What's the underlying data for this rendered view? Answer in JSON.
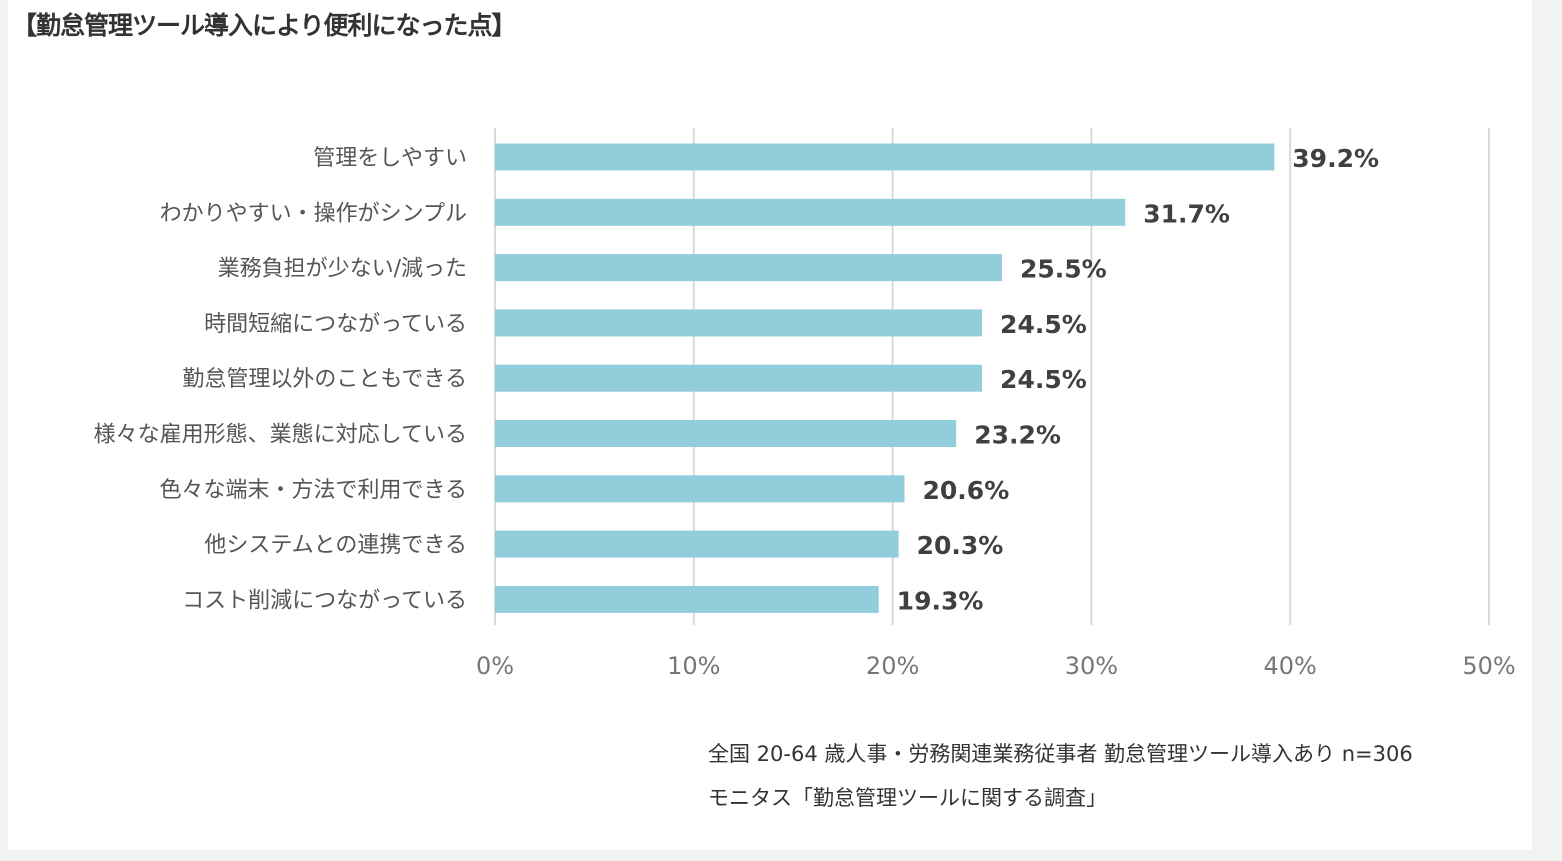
{
  "chart_data": {
    "type": "bar",
    "orientation": "horizontal",
    "title": "【勤怠管理ツール導入により便利になった点】",
    "categories": [
      "管理をしやすい",
      "わかりやすい・操作がシンプル",
      "業務負担が少ない/減った",
      "時間短縮につながっている",
      "勤怠管理以外のこともできる",
      "様々な雇用形態、業態に対応している",
      "色々な端末・方法で利用できる",
      "他システムとの連携できる",
      "コスト削減につながっている"
    ],
    "values": [
      39.2,
      31.7,
      25.5,
      24.5,
      24.5,
      23.2,
      20.6,
      20.3,
      19.3
    ],
    "value_labels": [
      "39.2%",
      "31.7%",
      "25.5%",
      "24.5%",
      "24.5%",
      "23.2%",
      "20.6%",
      "20.3%",
      "19.3%"
    ],
    "xlim": [
      0,
      50
    ],
    "xticks": [
      0,
      10,
      20,
      30,
      40,
      50
    ],
    "xtick_labels": [
      "0%",
      "10%",
      "20%",
      "30%",
      "40%",
      "50%"
    ],
    "grid": true,
    "bar_color": "#92cddc",
    "notes": [
      "全国 20-64 歳人事・労務関連業務従事者 勤怠管理ツール導入あり n=306",
      "モニタス「勤怠管理ツールに関する調査」"
    ]
  }
}
